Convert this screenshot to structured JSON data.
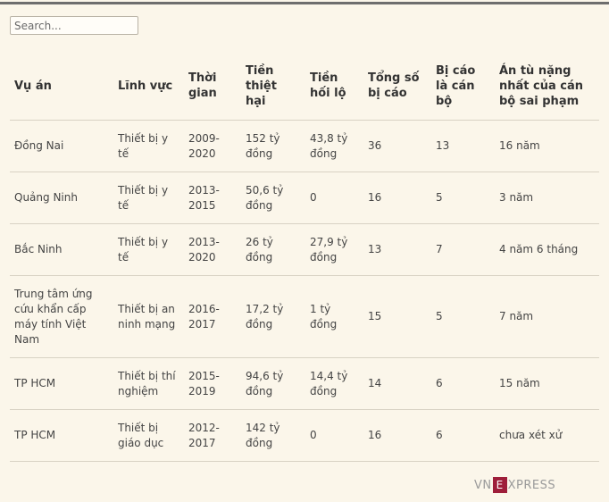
{
  "search": {
    "placeholder": "Search..."
  },
  "table": {
    "headers": [
      "Vụ án",
      "Lĩnh vực",
      "Thời gian",
      "Tiền thiệt hại",
      "Tiền hối lộ",
      "Tổng số bị cáo",
      "Bị cáo là cán bộ",
      "Án tù nặng nhất của cán bộ sai phạm"
    ],
    "rows": [
      [
        "Đồng Nai",
        "Thiết bị y tế",
        "2009-2020",
        "152 tỷ đồng",
        "43,8 tỷ đồng",
        "36",
        "13",
        "16 năm"
      ],
      [
        "Quảng Ninh",
        "Thiết bị y tế",
        "2013-2015",
        "50,6 tỷ đồng",
        "0",
        "16",
        "5",
        "3 năm"
      ],
      [
        "Bắc Ninh",
        "Thiết bị y tế",
        "2013-2020",
        "26 tỷ đồng",
        "27,9 tỷ đồng",
        "13",
        "7",
        "4 năm 6 tháng"
      ],
      [
        "Trung tâm ứng cứu khẩn cấp máy tính Việt Nam",
        "Thiết bị an ninh mạng",
        "2016-2017",
        "17,2 tỷ đồng",
        "1 tỷ đồng",
        "15",
        "5",
        "7 năm"
      ],
      [
        "TP HCM",
        "Thiết bị thí nghiệm",
        "2015-2019",
        "94,6 tỷ đồng",
        "14,4 tỷ đồng",
        "14",
        "6",
        "15 năm"
      ],
      [
        "TP HCM",
        "Thiết bị giáo dục",
        "2012-2017",
        "142 tỷ đồng",
        "0",
        "16",
        "6",
        "chưa xét xử"
      ]
    ]
  },
  "logo": {
    "prefix": "VN",
    "box": "E",
    "suffix": "XPRESS"
  }
}
